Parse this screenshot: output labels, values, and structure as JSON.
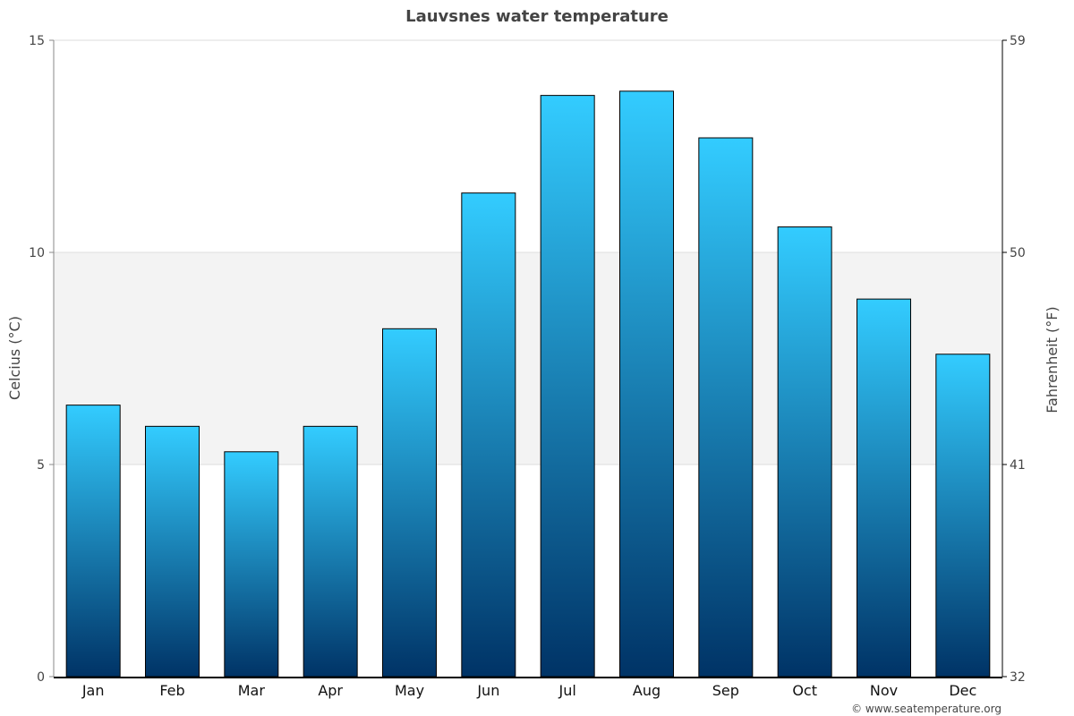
{
  "chart_data": {
    "type": "bar",
    "title": "Lauvsnes water temperature",
    "ylabel": "Celcius (°C)",
    "ylabel_right": "Fahrenheit (°F)",
    "categories": [
      "Jan",
      "Feb",
      "Mar",
      "Apr",
      "May",
      "Jun",
      "Jul",
      "Aug",
      "Sep",
      "Oct",
      "Nov",
      "Dec"
    ],
    "values": [
      6.4,
      5.9,
      5.3,
      5.9,
      8.2,
      11.4,
      13.7,
      13.8,
      12.7,
      10.6,
      8.9,
      7.6
    ],
    "ylim": [
      0,
      15
    ],
    "yticks": [
      "0",
      "5",
      "10",
      "15"
    ],
    "yticks_right": [
      "32",
      "41",
      "50",
      "59"
    ],
    "grid": true,
    "highlight_band": [
      5,
      10
    ],
    "colors": {
      "bar_top": "#33ccff",
      "bar_bottom": "#003366",
      "band": "#f3f3f3"
    },
    "credit": "© www.seatemperature.org"
  }
}
